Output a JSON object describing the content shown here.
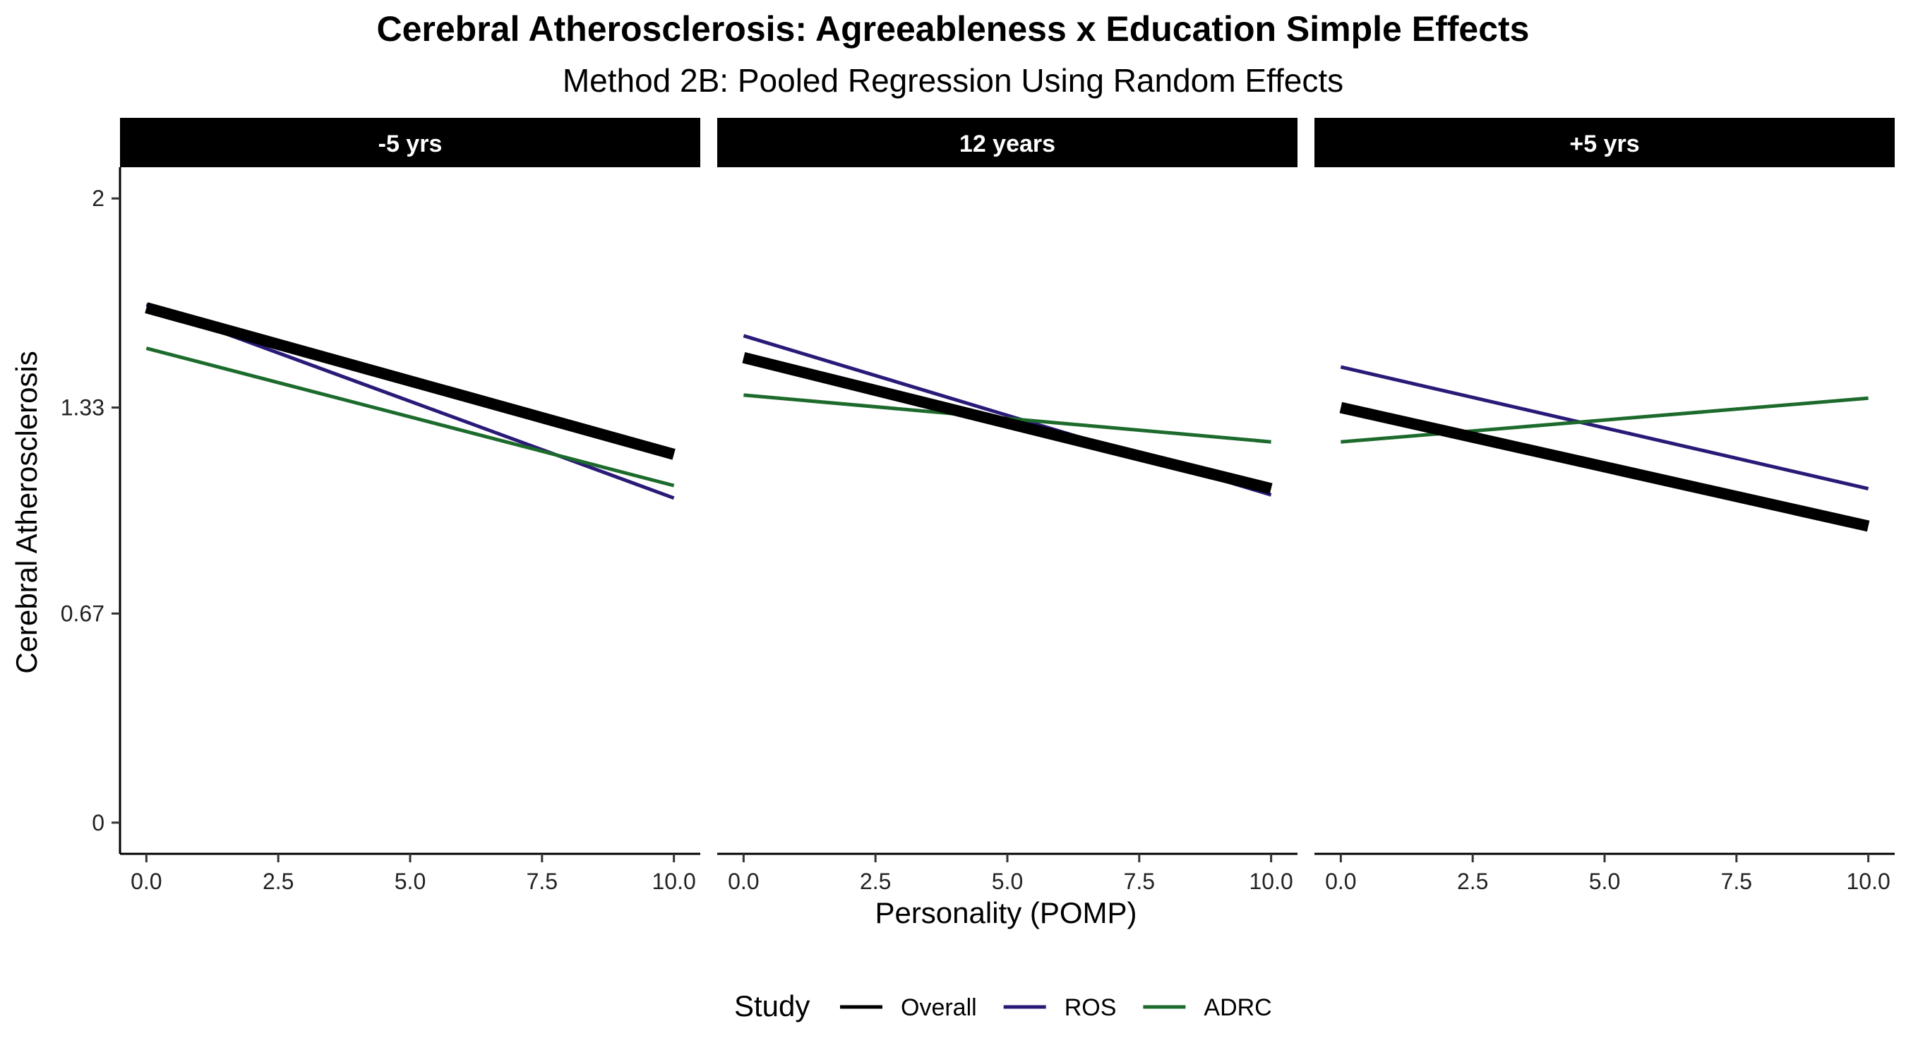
{
  "chart_data": {
    "type": "line",
    "title": "Cerebral Atherosclerosis: Agreeableness x Education Simple Effects",
    "subtitle": "Method 2B: Pooled Regression Using Random Effects",
    "xlabel": "Personality (POMP)",
    "ylabel": "Cerebral Atherosclerosis",
    "xlim": [
      -0.5,
      10.5
    ],
    "ylim": [
      -0.1,
      2.1
    ],
    "x_ticks": [
      0,
      2.5,
      5,
      7.5,
      10
    ],
    "x_tick_labels": [
      "0.0",
      "2.5",
      "5.0",
      "7.5",
      "10.0"
    ],
    "y_ticks": [
      0,
      0.67,
      1.33,
      2
    ],
    "y_tick_labels": [
      "0",
      "0.67",
      "1.33",
      "2"
    ],
    "grid": false,
    "legend": {
      "title": "Study",
      "position": "bottom",
      "entries": [
        {
          "label": "Overall",
          "color": "#000000"
        },
        {
          "label": "ROS",
          "color": "#2a1a78"
        },
        {
          "label": "ADRC",
          "color": "#1d6b2c"
        }
      ]
    },
    "panels": [
      {
        "label": "-5 yrs",
        "series": [
          {
            "name": "Overall",
            "color": "#000000",
            "x": [
              0,
              10
            ],
            "y": [
              1.65,
              1.18
            ]
          },
          {
            "name": "ROS",
            "color": "#2a1a78",
            "x": [
              0,
              10
            ],
            "y": [
              1.66,
              1.04
            ]
          },
          {
            "name": "ADRC",
            "color": "#1d6b2c",
            "x": [
              0,
              10
            ],
            "y": [
              1.52,
              1.08
            ]
          }
        ]
      },
      {
        "label": "12 years",
        "series": [
          {
            "name": "Overall",
            "color": "#000000",
            "x": [
              0,
              10
            ],
            "y": [
              1.49,
              1.07
            ]
          },
          {
            "name": "ROS",
            "color": "#2a1a78",
            "x": [
              0,
              10
            ],
            "y": [
              1.56,
              1.05
            ]
          },
          {
            "name": "ADRC",
            "color": "#1d6b2c",
            "x": [
              0,
              10
            ],
            "y": [
              1.37,
              1.22
            ]
          }
        ]
      },
      {
        "label": "+5 yrs",
        "series": [
          {
            "name": "Overall",
            "color": "#000000",
            "x": [
              0,
              10
            ],
            "y": [
              1.33,
              0.95
            ]
          },
          {
            "name": "ROS",
            "color": "#2a1a78",
            "x": [
              0,
              10
            ],
            "y": [
              1.46,
              1.07
            ]
          },
          {
            "name": "ADRC",
            "color": "#1d6b2c",
            "x": [
              0,
              10
            ],
            "y": [
              1.22,
              1.36
            ]
          }
        ]
      }
    ]
  }
}
